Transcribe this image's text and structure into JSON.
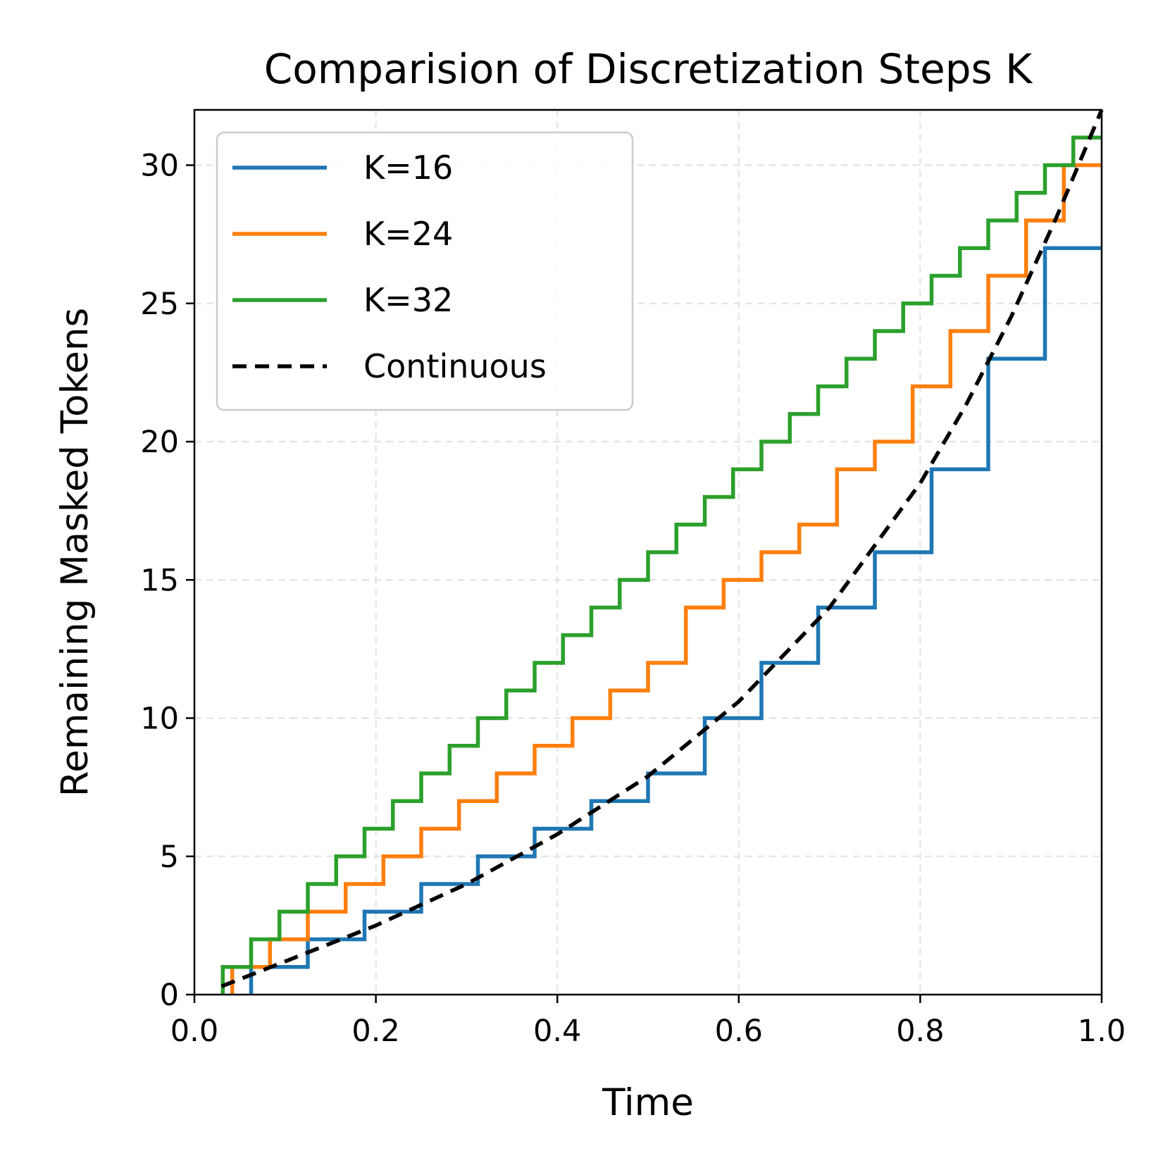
{
  "chart_data": {
    "type": "line",
    "title": "Comparision of Discretization Steps K",
    "xlabel": "Time",
    "ylabel": "Remaining Masked Tokens",
    "xlim": [
      0.0,
      1.0
    ],
    "ylim": [
      0,
      32
    ],
    "xticks": [
      "0.0",
      "0.2",
      "0.4",
      "0.6",
      "0.8",
      "1.0"
    ],
    "yticks": [
      "0",
      "5",
      "10",
      "15",
      "20",
      "25",
      "30"
    ],
    "grid": true,
    "legend_position": "top-left",
    "series": [
      {
        "name": "K=16",
        "color": "#1f77b4",
        "style": "step",
        "x": [
          0.0625,
          0.125,
          0.1875,
          0.25,
          0.3125,
          0.375,
          0.4375,
          0.5,
          0.5625,
          0.625,
          0.6875,
          0.75,
          0.8125,
          0.875,
          0.9375,
          1.0
        ],
        "y": [
          1,
          2,
          3,
          4,
          5,
          6,
          7,
          8,
          10,
          12,
          14,
          16,
          19,
          23,
          27,
          27
        ]
      },
      {
        "name": "K=24",
        "color": "#ff7f0e",
        "style": "step",
        "x": [
          0.0417,
          0.0833,
          0.125,
          0.1667,
          0.2083,
          0.25,
          0.2917,
          0.3333,
          0.375,
          0.4167,
          0.4583,
          0.5,
          0.5417,
          0.5833,
          0.625,
          0.6667,
          0.7083,
          0.75,
          0.7917,
          0.8333,
          0.875,
          0.9167,
          0.9583,
          1.0
        ],
        "y": [
          1,
          2,
          3,
          4,
          5,
          6,
          7,
          8,
          9,
          10,
          11,
          12,
          14,
          15,
          16,
          17,
          19,
          20,
          22,
          24,
          26,
          28,
          30,
          30
        ]
      },
      {
        "name": "K=32",
        "color": "#2ca02c",
        "style": "step",
        "x": [
          0.03125,
          0.0625,
          0.09375,
          0.125,
          0.15625,
          0.1875,
          0.21875,
          0.25,
          0.28125,
          0.3125,
          0.34375,
          0.375,
          0.40625,
          0.4375,
          0.46875,
          0.5,
          0.53125,
          0.5625,
          0.59375,
          0.625,
          0.65625,
          0.6875,
          0.71875,
          0.75,
          0.78125,
          0.8125,
          0.84375,
          0.875,
          0.90625,
          0.9375,
          0.96875,
          1.0
        ],
        "y": [
          1,
          2,
          3,
          4,
          5,
          6,
          7,
          8,
          9,
          10,
          11,
          12,
          13,
          14,
          15,
          16,
          17,
          18,
          19,
          20,
          21,
          22,
          23,
          24,
          25,
          26,
          27,
          28,
          29,
          30,
          31,
          31
        ]
      },
      {
        "name": "Continuous",
        "color": "#000000",
        "style": "dashed",
        "x": [
          0.03,
          0.1,
          0.2,
          0.3,
          0.4,
          0.5,
          0.6,
          0.7,
          0.8,
          0.85,
          0.9,
          0.95,
          1.0
        ],
        "y": [
          0.3,
          1.2,
          2.5,
          4.0,
          5.8,
          7.9,
          10.6,
          14.0,
          18.5,
          21.3,
          24.5,
          28.1,
          32.0
        ]
      }
    ]
  }
}
